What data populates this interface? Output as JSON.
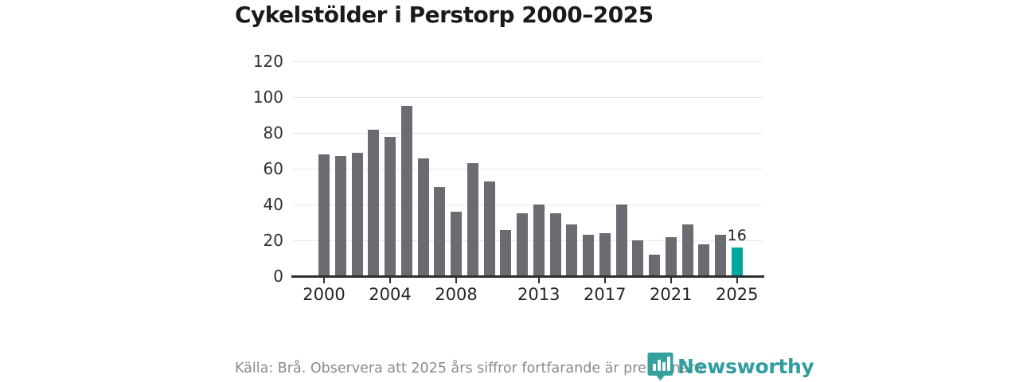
{
  "title": "Cykelstölder i Perstorp 2000–2025",
  "chart_data": {
    "type": "bar",
    "categories": [
      2000,
      2001,
      2002,
      2003,
      2004,
      2005,
      2006,
      2007,
      2008,
      2009,
      2010,
      2011,
      2012,
      2013,
      2014,
      2015,
      2016,
      2017,
      2018,
      2019,
      2020,
      2021,
      2022,
      2023,
      2024,
      2025
    ],
    "values": [
      68,
      67,
      69,
      82,
      78,
      95,
      66,
      50,
      36,
      63,
      53,
      26,
      35,
      40,
      35,
      29,
      23,
      24,
      40,
      20,
      12,
      22,
      29,
      18,
      23,
      16
    ],
    "title": "Cykelstölder i Perstorp 2000–2025",
    "xlabel": "",
    "ylabel": "",
    "ylim": [
      0,
      120
    ],
    "yticks": [
      0,
      20,
      40,
      60,
      80,
      100,
      120
    ],
    "xtick_years": [
      2000,
      2004,
      2008,
      2013,
      2017,
      2021,
      2025
    ],
    "grid": "horizontal",
    "legend": "none",
    "bar_color": "#6b6b72",
    "highlight_year": 2025,
    "highlight_color": "#00a79b",
    "highlight_label": "16"
  },
  "footer": {
    "source_text": "Källa: Brå. Observera att 2025 års siffror fortfarande är preliminära."
  },
  "logo": {
    "text": "Newsworthy",
    "color": "#2f9d9d",
    "icon": "newsworthy-shield-barchart-icon"
  }
}
